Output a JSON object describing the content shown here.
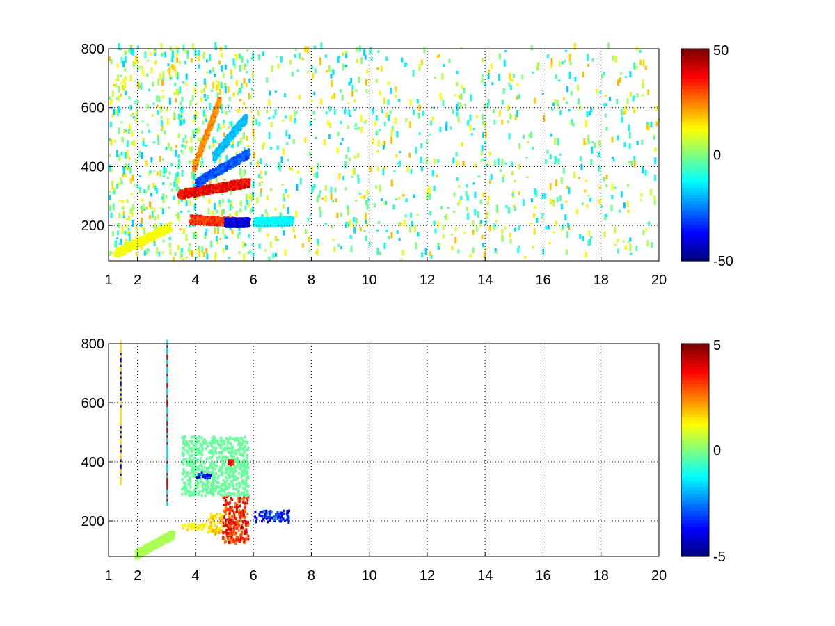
{
  "chart_data": [
    {
      "type": "heatmap",
      "title": "",
      "xlabel": "",
      "ylabel": "",
      "xlim": [
        1,
        20
      ],
      "ylim": [
        80,
        800
      ],
      "grid": true,
      "grid_style": "dotted",
      "xticks": [
        1,
        2,
        4,
        6,
        8,
        10,
        12,
        14,
        16,
        18,
        20
      ],
      "yticks": [
        200,
        400,
        600,
        800
      ],
      "colormap": "jet",
      "color_range": [
        -50,
        50
      ],
      "colorbar_ticks": [
        50,
        0,
        -50
      ],
      "features": [
        {
          "kind": "ridge",
          "from": [
            3.4,
            300
          ],
          "to": [
            5.8,
            340
          ],
          "value": 45
        },
        {
          "kind": "ridge",
          "from": [
            3.8,
            215
          ],
          "to": [
            5.6,
            205
          ],
          "value": 38
        },
        {
          "kind": "ridge",
          "from": [
            4.0,
            340
          ],
          "to": [
            5.8,
            440
          ],
          "value": -35
        },
        {
          "kind": "ridge",
          "from": [
            5.0,
            205
          ],
          "to": [
            5.8,
            205
          ],
          "value": -48
        },
        {
          "kind": "ridge",
          "from": [
            3.9,
            390
          ],
          "to": [
            4.8,
            620
          ],
          "value": 28
        },
        {
          "kind": "ridge",
          "from": [
            4.6,
            430
          ],
          "to": [
            5.7,
            560
          ],
          "value": -22
        },
        {
          "kind": "ridge",
          "from": [
            1.2,
            100
          ],
          "to": [
            3.1,
            190
          ],
          "value": 14
        },
        {
          "kind": "ridge",
          "from": [
            6.0,
            205
          ],
          "to": [
            7.3,
            210
          ],
          "value": -15
        }
      ],
      "noise": {
        "x_range": [
          1,
          20
        ],
        "y_range": [
          80,
          800
        ],
        "value_range": [
          -18,
          20
        ],
        "density": "dense for x < 6, sparse for x > 6"
      }
    },
    {
      "type": "heatmap",
      "title": "",
      "xlabel": "",
      "ylabel": "",
      "xlim": [
        1,
        20
      ],
      "ylim": [
        80,
        800
      ],
      "grid": true,
      "grid_style": "dotted",
      "xticks": [
        1,
        2,
        4,
        6,
        8,
        10,
        12,
        14,
        16,
        18,
        20
      ],
      "yticks": [
        200,
        400,
        600,
        800
      ],
      "colormap": "jet",
      "color_range": [
        -5,
        5
      ],
      "colorbar_ticks": [
        5,
        0,
        -5
      ],
      "features": [
        {
          "kind": "patch",
          "x": [
            4.9,
            5.8
          ],
          "y": [
            120,
            280
          ],
          "value": 4
        },
        {
          "kind": "patch",
          "x": [
            4.4,
            4.9
          ],
          "y": [
            150,
            220
          ],
          "value": 2
        },
        {
          "kind": "patch",
          "x": [
            3.5,
            4.4
          ],
          "y": [
            165,
            190
          ],
          "value": 1.5
        },
        {
          "kind": "patch",
          "x": [
            6.0,
            7.2
          ],
          "y": [
            190,
            230
          ],
          "value": -4
        },
        {
          "kind": "patch",
          "x": [
            3.5,
            5.8
          ],
          "y": [
            280,
            480
          ],
          "value": -0.3
        },
        {
          "kind": "patch",
          "x": [
            4.0,
            4.5
          ],
          "y": [
            340,
            360
          ],
          "value": -4
        },
        {
          "kind": "patch",
          "x": [
            5.1,
            5.3
          ],
          "y": [
            385,
            400
          ],
          "value": 4
        },
        {
          "kind": "line",
          "x": 1.4,
          "y": [
            320,
            800
          ],
          "value": -4
        },
        {
          "kind": "line",
          "x": 3.0,
          "y": [
            250,
            800
          ],
          "value": 4
        },
        {
          "kind": "ridge",
          "from": [
            1.9,
            80
          ],
          "to": [
            3.2,
            150
          ],
          "value": 0.5
        }
      ]
    }
  ]
}
